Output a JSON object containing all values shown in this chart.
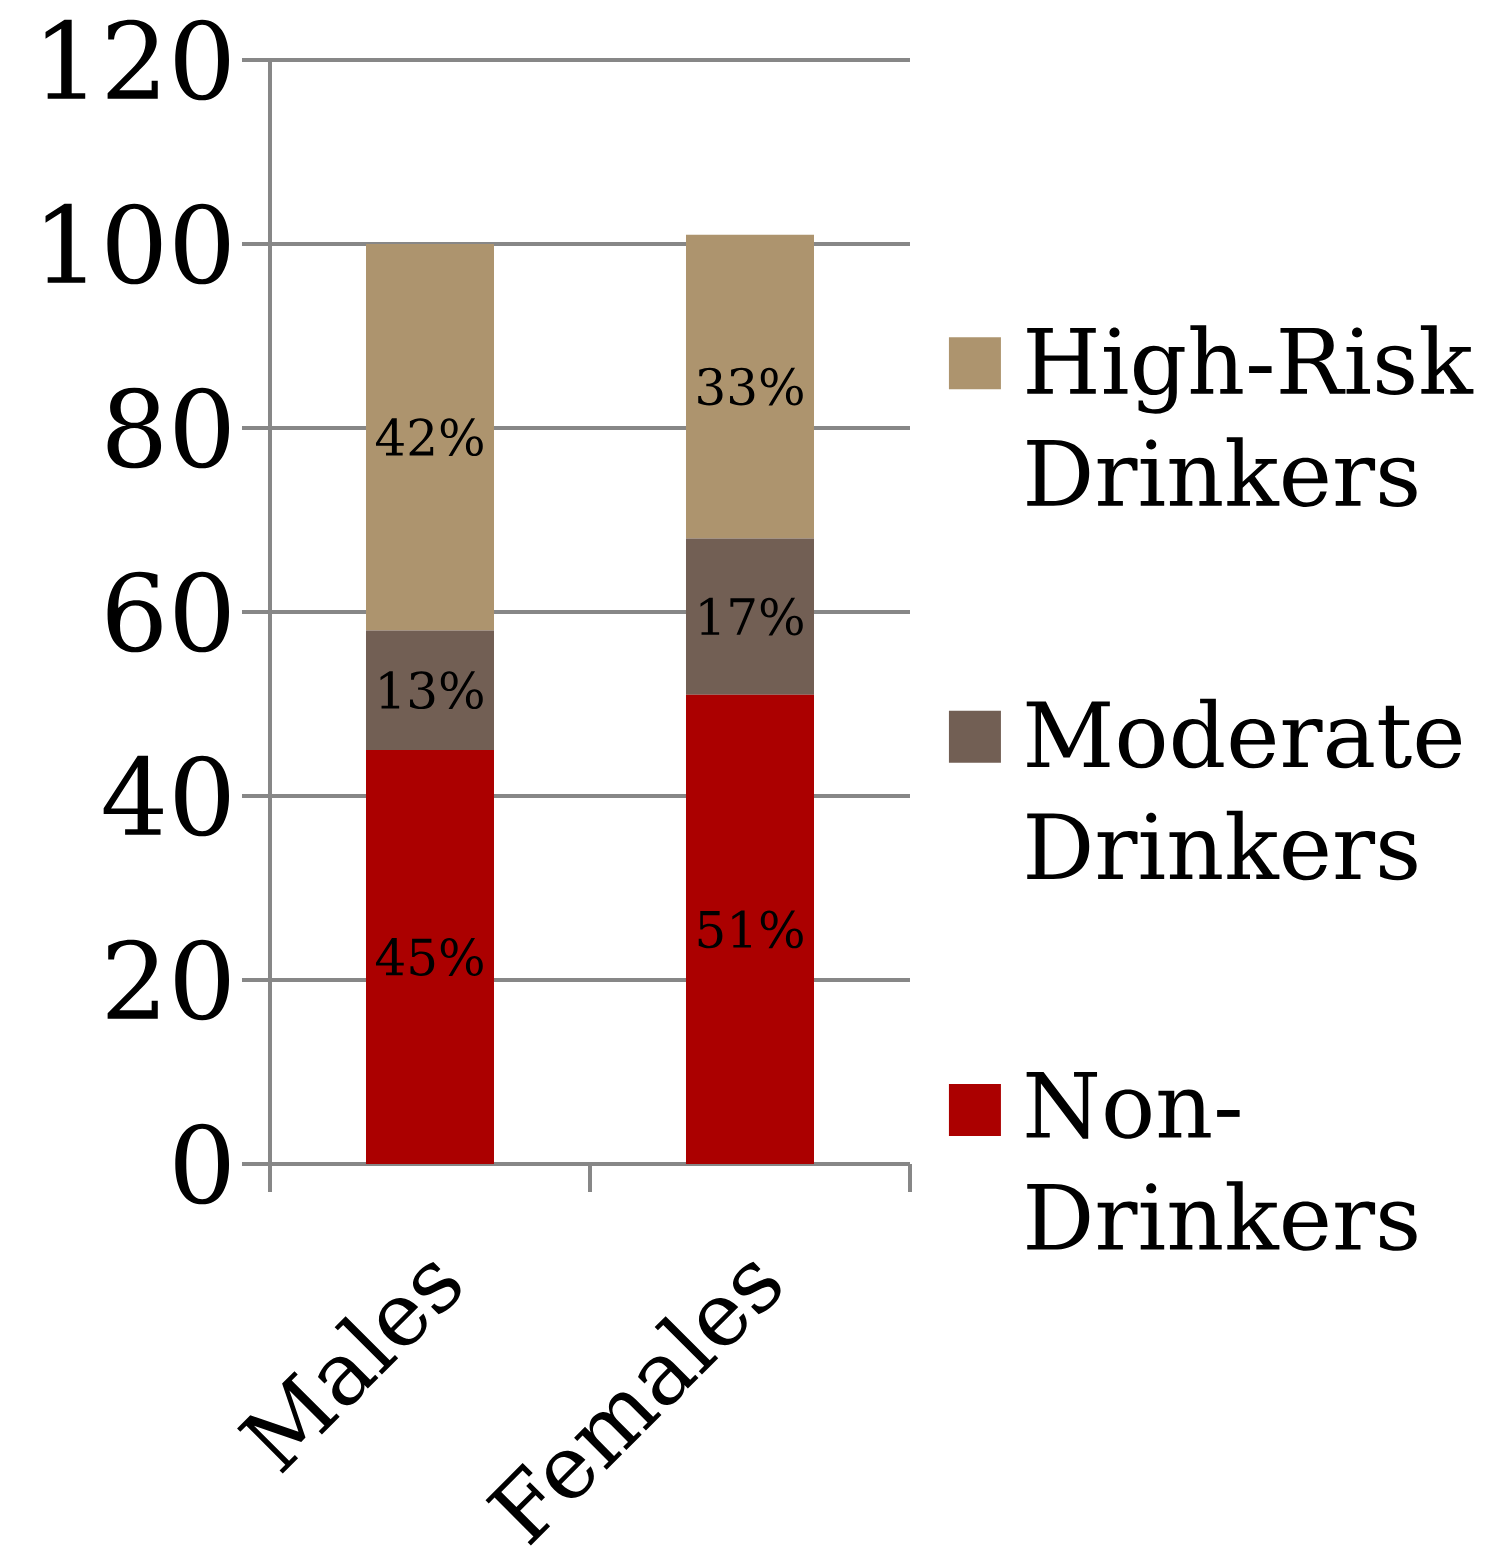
{
  "chart_data": {
    "type": "bar",
    "stacked": true,
    "categories": [
      "Males",
      "Females"
    ],
    "series": [
      {
        "name": "Non-Drinkers",
        "color": "#ab0000",
        "values": [
          45,
          51
        ],
        "value_labels": [
          "45%",
          "51%"
        ]
      },
      {
        "name": "Moderate Drinkers",
        "color": "#725f54",
        "values": [
          13,
          17
        ],
        "value_labels": [
          "13%",
          "17%"
        ]
      },
      {
        "name": "High-Risk Drinkers",
        "color": "#ad946e",
        "values": [
          42,
          33
        ],
        "value_labels": [
          "42%",
          "33%"
        ]
      }
    ],
    "ylim": [
      0,
      120
    ],
    "yticks": [
      0,
      20,
      40,
      60,
      80,
      100,
      120
    ],
    "grid": "y",
    "legend": "right"
  }
}
